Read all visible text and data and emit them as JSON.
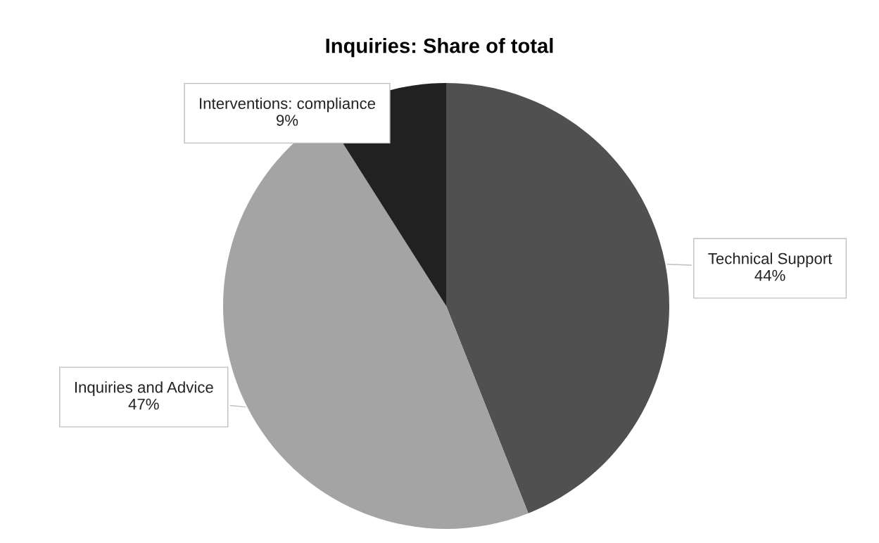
{
  "chart_data": {
    "type": "pie",
    "title": "Inquiries: Share of total",
    "categories": [
      "Technical Support",
      "Inquiries and Advice",
      "Interventions: compliance"
    ],
    "values": [
      44,
      47,
      9
    ],
    "value_labels": [
      "44%",
      "47%",
      "9%"
    ],
    "colors": [
      "#505050",
      "#a4a4a4",
      "#212121"
    ],
    "legend": false
  }
}
